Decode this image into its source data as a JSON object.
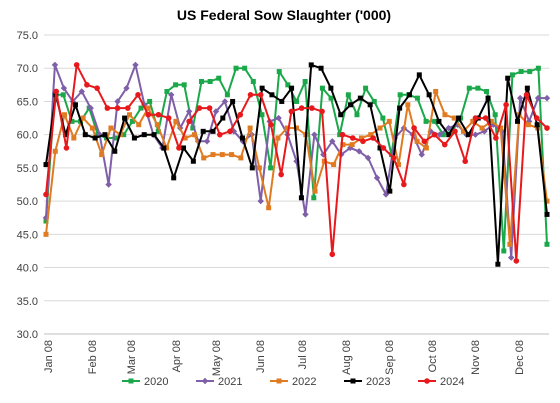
{
  "chart_data": {
    "type": "line",
    "title": "US Federal Sow Slaughter ('000)",
    "xlabel": "",
    "ylabel": "",
    "ylim": [
      30,
      75
    ],
    "yticks": [
      "30.0",
      "35.0",
      "40.0",
      "45.0",
      "50.0",
      "55.0",
      "60.0",
      "65.0",
      "70.0",
      "75.0"
    ],
    "xticks": [
      "Jan 08",
      "Feb 08",
      "Mar 08",
      "Apr 08",
      "May 08",
      "Jun 08",
      "Jul 08",
      "Aug 08",
      "Sep 08",
      "Oct 08",
      "Nov 08",
      "Dec 08"
    ],
    "grid": "horizontal",
    "legend_position": "bottom",
    "series": [
      {
        "name": "2020",
        "color": "#1aa84a",
        "marker": "square",
        "values": [
          47.0,
          66.0,
          66.0,
          62.0,
          62.0,
          64.0,
          60.0,
          59.5,
          59.5,
          60.0,
          62.0,
          64.0,
          65.0,
          60.5,
          66.5,
          67.5,
          67.5,
          61.0,
          68.0,
          68.0,
          68.5,
          66.0,
          70.0,
          70.0,
          68.0,
          63.0,
          55.0,
          69.5,
          67.5,
          65.0,
          68.0,
          50.5,
          67.0,
          65.5,
          60.0,
          66.0,
          63.0,
          67.0,
          65.0,
          62.5,
          57.0,
          66.0,
          66.0,
          65.5,
          62.0,
          62.0,
          60.0,
          60.5,
          62.5,
          67.0,
          67.0,
          66.5,
          63.0,
          42.5,
          69.0,
          69.5,
          69.5,
          70.0,
          43.5
        ]
      },
      {
        "name": "2021",
        "color": "#7f5fa8",
        "marker": "diamond",
        "values": [
          47.5,
          70.5,
          67.0,
          65.0,
          66.5,
          64.0,
          60.0,
          52.5,
          65.0,
          67.0,
          70.5,
          64.5,
          60.0,
          58.0,
          66.0,
          61.0,
          63.5,
          59.0,
          59.0,
          63.5,
          65.0,
          60.5,
          59.0,
          60.0,
          50.0,
          62.0,
          62.5,
          60.0,
          56.0,
          48.0,
          60.0,
          57.0,
          59.0,
          57.0,
          58.0,
          57.5,
          56.5,
          53.5,
          51.0,
          59.5,
          61.0,
          60.0,
          57.0,
          60.5,
          60.0,
          61.0,
          61.5,
          60.0,
          60.0,
          60.5,
          61.5,
          60.5,
          41.5,
          65.5,
          62.0,
          65.5,
          65.5
        ]
      },
      {
        "name": "2022",
        "color": "#e07b22",
        "marker": "square",
        "values": [
          45.0,
          57.5,
          63.0,
          59.5,
          62.5,
          61.0,
          57.0,
          61.0,
          60.0,
          63.0,
          61.5,
          64.0,
          61.5,
          58.0,
          62.0,
          59.5,
          60.0,
          56.5,
          57.0,
          57.0,
          57.0,
          56.5,
          61.0,
          55.0,
          49.0,
          59.5,
          61.0,
          61.0,
          60.0,
          51.5,
          56.0,
          55.5,
          58.5,
          58.5,
          59.5,
          60.0,
          61.0,
          62.0,
          55.5,
          64.5,
          59.0,
          58.0,
          66.5,
          63.0,
          62.5,
          60.5,
          62.0,
          61.0,
          62.0,
          61.0,
          43.5,
          63.0,
          61.5,
          61.0,
          50.0
        ]
      },
      {
        "name": "2023",
        "color": "#000000",
        "marker": "square",
        "values": [
          55.5,
          66.0,
          60.0,
          64.5,
          60.0,
          59.5,
          60.0,
          57.5,
          62.5,
          59.5,
          60.0,
          60.0,
          58.0,
          53.5,
          58.0,
          56.0,
          60.5,
          60.5,
          62.5,
          65.0,
          59.5,
          55.0,
          67.0,
          66.0,
          65.0,
          67.0,
          50.5,
          70.5,
          70.0,
          67.0,
          63.0,
          64.5,
          65.5,
          64.5,
          58.0,
          51.5,
          64.0,
          66.0,
          69.0,
          66.0,
          62.0,
          60.0,
          62.5,
          60.0,
          62.5,
          65.5,
          40.5,
          68.5,
          62.0,
          67.0,
          61.5,
          48.0
        ]
      },
      {
        "name": "2024",
        "color": "#e8191c",
        "marker": "circle",
        "values": [
          51.0,
          66.5,
          58.0,
          70.5,
          67.5,
          67.0,
          64.0,
          64.0,
          64.0,
          66.0,
          63.0,
          63.0,
          62.5,
          58.0,
          62.0,
          64.0,
          64.0,
          60.0,
          60.5,
          63.0,
          66.0,
          66.0,
          61.5,
          54.0,
          63.5,
          64.0,
          64.0,
          63.5,
          42.0,
          60.0,
          59.5,
          59.0,
          59.5,
          58.0,
          56.5,
          52.5,
          61.0,
          59.0,
          60.0,
          58.5,
          60.5,
          56.0,
          62.5,
          62.5,
          59.5,
          64.5,
          41.0,
          66.0,
          62.5,
          61.0
        ]
      }
    ]
  }
}
